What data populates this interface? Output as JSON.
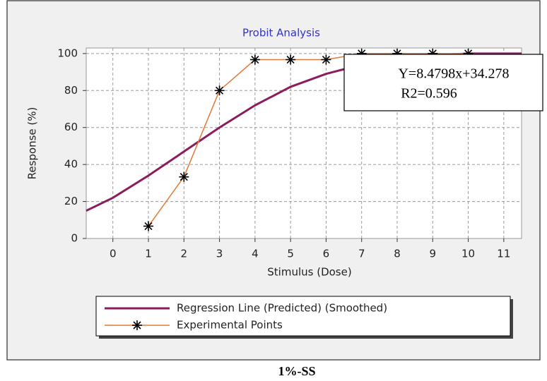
{
  "chart_data": {
    "type": "line",
    "title": "Probit Analysis",
    "x_label": "Stimulus (Dose)",
    "y_label": "Response (%)",
    "xlim": [
      -0.75,
      11.5
    ],
    "ylim": [
      0,
      103
    ],
    "xticks": [
      0,
      1,
      2,
      3,
      4,
      5,
      6,
      7,
      8,
      9,
      10,
      11
    ],
    "yticks": [
      0,
      20,
      40,
      60,
      80,
      100
    ],
    "grid": true,
    "series": [
      {
        "name": "Regression Line (Predicted) (Smoothed)",
        "color": "#8b1c5e",
        "marker": "none",
        "x": [
          -0.75,
          0,
          1,
          2,
          3,
          4,
          5,
          6,
          7,
          8,
          9,
          10,
          11,
          11.5
        ],
        "values": [
          15,
          22,
          34,
          47,
          60,
          72,
          82,
          89,
          94,
          97,
          99,
          100,
          100,
          100
        ]
      },
      {
        "name": "Experimental Points",
        "color": "#e07a3a",
        "marker": "asterisk",
        "x": [
          1,
          2,
          3,
          4,
          5,
          6,
          7,
          8,
          9,
          10
        ],
        "values": [
          6.67,
          33.3,
          80,
          96.7,
          96.7,
          96.7,
          100,
          100,
          100,
          100
        ]
      }
    ],
    "annotations": [
      "Y=8.4798x+34.278",
      "R2=0.596"
    ]
  },
  "caption": "1%-SS"
}
